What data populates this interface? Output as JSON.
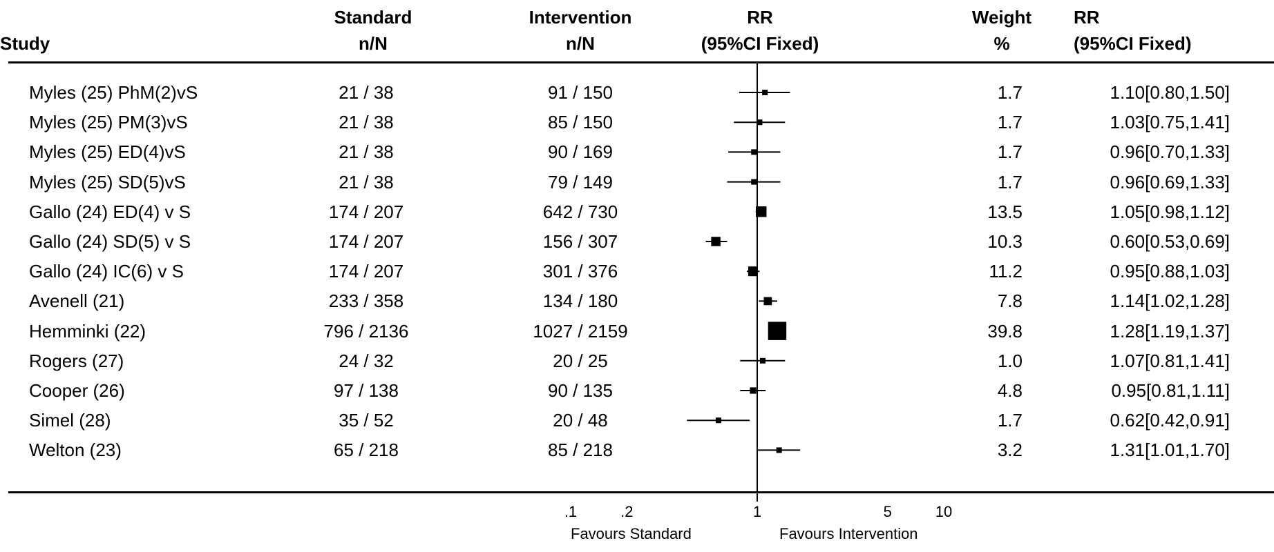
{
  "headers": {
    "study": "Study",
    "standard_1": "Standard",
    "standard_2": "n/N",
    "intervention_1": "Intervention",
    "intervention_2": "n/N",
    "rr_1": "RR",
    "rr_2": "(95%CI Fixed)",
    "weight_1": "Weight",
    "weight_2": "%",
    "rrtext_1": "RR",
    "rrtext_2": "(95%CI Fixed)"
  },
  "chart_data": {
    "type": "forest",
    "scale": "log",
    "xlim": [
      0.1,
      10
    ],
    "ticks": [
      {
        "value": 0.1,
        "label": ".1"
      },
      {
        "value": 0.2,
        "label": ".2"
      },
      {
        "value": 1,
        "label": "1"
      },
      {
        "value": 5,
        "label": "5"
      },
      {
        "value": 10,
        "label": "10"
      }
    ],
    "reference_line": 1,
    "favours_left": "Favours Standard",
    "favours_right": "Favours Intervention",
    "studies": [
      {
        "study": "Myles (25) PhM(2)vS",
        "standard": "21 / 38",
        "intervention": "91 / 150",
        "rr": 1.1,
        "lo": 0.8,
        "hi": 1.5,
        "weight": 1.7,
        "weight_text": "1.7",
        "rr_text": "1.10[0.80,1.50]"
      },
      {
        "study": "Myles (25) PM(3)vS",
        "standard": "21 / 38",
        "intervention": "85 / 150",
        "rr": 1.03,
        "lo": 0.75,
        "hi": 1.41,
        "weight": 1.7,
        "weight_text": "1.7",
        "rr_text": "1.03[0.75,1.41]"
      },
      {
        "study": "Myles (25) ED(4)vS",
        "standard": "21 / 38",
        "intervention": "90 / 169",
        "rr": 0.96,
        "lo": 0.7,
        "hi": 1.33,
        "weight": 1.7,
        "weight_text": "1.7",
        "rr_text": "0.96[0.70,1.33]"
      },
      {
        "study": "Myles (25) SD(5)vS",
        "standard": "21 / 38",
        "intervention": "79 / 149",
        "rr": 0.96,
        "lo": 0.69,
        "hi": 1.33,
        "weight": 1.7,
        "weight_text": "1.7",
        "rr_text": "0.96[0.69,1.33]"
      },
      {
        "study": "Gallo (24) ED(4) v S",
        "standard": "174 / 207",
        "intervention": "642 / 730",
        "rr": 1.05,
        "lo": 0.98,
        "hi": 1.12,
        "weight": 13.5,
        "weight_text": "13.5",
        "rr_text": "1.05[0.98,1.12]"
      },
      {
        "study": "Gallo (24) SD(5) v S",
        "standard": "174 / 207",
        "intervention": "156 / 307",
        "rr": 0.6,
        "lo": 0.53,
        "hi": 0.69,
        "weight": 10.3,
        "weight_text": "10.3",
        "rr_text": "0.60[0.53,0.69]"
      },
      {
        "study": "Gallo (24) IC(6) v S",
        "standard": "174 / 207",
        "intervention": "301 / 376",
        "rr": 0.95,
        "lo": 0.88,
        "hi": 1.03,
        "weight": 11.2,
        "weight_text": "11.2",
        "rr_text": "0.95[0.88,1.03]"
      },
      {
        "study": "Avenell (21)",
        "standard": "233 / 358",
        "intervention": "134 / 180",
        "rr": 1.14,
        "lo": 1.02,
        "hi": 1.28,
        "weight": 7.8,
        "weight_text": "7.8",
        "rr_text": "1.14[1.02,1.28]"
      },
      {
        "study": "Hemminki (22)",
        "standard": "796 / 2136",
        "intervention": "1027 / 2159",
        "rr": 1.28,
        "lo": 1.19,
        "hi": 1.37,
        "weight": 39.8,
        "weight_text": "39.8",
        "rr_text": "1.28[1.19,1.37]"
      },
      {
        "study": "Rogers (27)",
        "standard": "24 / 32",
        "intervention": "20 / 25",
        "rr": 1.07,
        "lo": 0.81,
        "hi": 1.41,
        "weight": 1.0,
        "weight_text": "1.0",
        "rr_text": "1.07[0.81,1.41]"
      },
      {
        "study": "Cooper (26)",
        "standard": "97 / 138",
        "intervention": "90 / 135",
        "rr": 0.95,
        "lo": 0.81,
        "hi": 1.11,
        "weight": 4.8,
        "weight_text": "4.8",
        "rr_text": "0.95[0.81,1.11]"
      },
      {
        "study": "Simel (28)",
        "standard": "35 / 52",
        "intervention": "20 / 48",
        "rr": 0.62,
        "lo": 0.42,
        "hi": 0.91,
        "weight": 1.7,
        "weight_text": "1.7",
        "rr_text": "0.62[0.42,0.91]"
      },
      {
        "study": "Welton (23)",
        "standard": "65 / 218",
        "intervention": "85 / 218",
        "rr": 1.31,
        "lo": 1.01,
        "hi": 1.7,
        "weight": 3.2,
        "weight_text": "3.2",
        "rr_text": "1.31[1.01,1.70]"
      }
    ]
  }
}
